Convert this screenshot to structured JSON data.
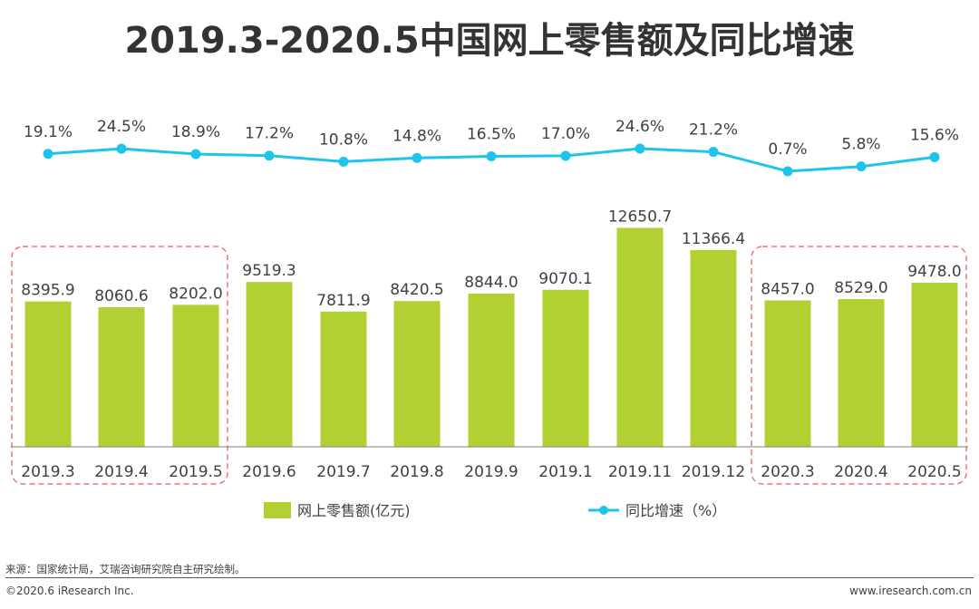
{
  "chart_data": {
    "type": "bar+line",
    "title": "2019.3-2020.5中国网上零售额及同比增速",
    "categories": [
      "2019.3",
      "2019.4",
      "2019.5",
      "2019.6",
      "2019.7",
      "2019.8",
      "2019.9",
      "2019.1",
      "2019.11",
      "2019.12",
      "2020.3",
      "2020.4",
      "2020.5"
    ],
    "series": [
      {
        "name": "网上零售额(亿元)",
        "type": "bar",
        "values": [
          8395.9,
          8060.6,
          8202.0,
          9519.3,
          7811.9,
          8420.5,
          8844.0,
          9070.1,
          12650.7,
          11366.4,
          8457.0,
          8529.0,
          9478.0
        ],
        "labels": [
          "8395.9",
          "8060.6",
          "8202.0",
          "9519.3",
          "7811.9",
          "8420.5",
          "8844.0",
          "9070.1",
          "12650.7",
          "11366.4",
          "8457.0",
          "8529.0",
          "9478.0"
        ]
      },
      {
        "name": "同比增速（%）",
        "type": "line",
        "values": [
          19.1,
          24.5,
          18.9,
          17.2,
          10.8,
          14.8,
          16.5,
          17.0,
          24.6,
          21.2,
          0.7,
          5.8,
          15.6
        ],
        "labels": [
          "19.1%",
          "24.5%",
          "18.9%",
          "17.2%",
          "10.8%",
          "14.8%",
          "16.5%",
          "17.0%",
          "24.6%",
          "21.2%",
          "0.7%",
          "5.8%",
          "15.6%"
        ]
      }
    ],
    "highlight_groups": [
      [
        0,
        2
      ],
      [
        10,
        12
      ]
    ],
    "colors": {
      "bar": "#b1d132",
      "line": "#1fc4ec",
      "highlight": "#ee7777",
      "axis": "#7f7f7f"
    }
  },
  "footer": {
    "source": "来源：国家统计局，艾瑞咨询研究院自主研究绘制。",
    "copyright": "©2020.6 iResearch Inc.",
    "website": "www.iresearch.com.cn"
  }
}
